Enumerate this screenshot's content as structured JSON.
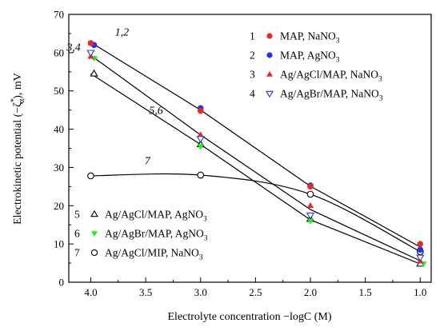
{
  "chart_data": {
    "type": "scatter",
    "title": "",
    "xlabel": "Electrolyte concentration −logC (M)",
    "ylabel": {
      "prefix": "Electrokinetic potential (−ζ",
      "superscript": "*",
      "subscript": "α",
      "suffix": "), mV"
    },
    "xlim": [
      4.2,
      0.9
    ],
    "ylim": [
      0,
      70
    ],
    "x_reversed": true,
    "x_ticks": [
      "4.0",
      "3.5",
      "3.0",
      "2.5",
      "2.0",
      "1.5",
      "1.0"
    ],
    "x_tick_values": [
      4.0,
      3.5,
      3.0,
      2.5,
      2.0,
      1.5,
      1.0
    ],
    "y_ticks": [
      "0",
      "10",
      "20",
      "30",
      "40",
      "50",
      "60",
      "70"
    ],
    "y_tick_values": [
      0,
      10,
      20,
      30,
      40,
      50,
      60,
      70
    ],
    "grid": false,
    "legend_top": {
      "placement": "top-right"
    },
    "legend_bottom": {
      "placement": "bottom-left"
    },
    "series": [
      {
        "number": "1",
        "name": "MAP, NaNO",
        "name_sub": "3",
        "marker": "circle",
        "filled": true,
        "color": "#e8272a",
        "x": [
          4.0,
          3.0,
          2.0,
          1.0
        ],
        "y": [
          62.5,
          44.8,
          25.0,
          10.0
        ]
      },
      {
        "number": "2",
        "name": "MAP, AgNO",
        "name_sub": "3",
        "marker": "circle",
        "filled": true,
        "color": "#2135e0",
        "x": [
          3.97,
          3.0,
          2.0,
          1.0
        ],
        "y": [
          62.0,
          45.5,
          25.3,
          8.5
        ]
      },
      {
        "number": "3",
        "name": "Ag/AgCl/MAP, NaNO",
        "name_sub": "3",
        "marker": "triangle-up",
        "filled": true,
        "color": "#e8272a",
        "x": [
          4.0,
          3.0,
          2.0,
          1.0
        ],
        "y": [
          59.0,
          38.5,
          20.0,
          5.5
        ]
      },
      {
        "number": "4",
        "name": "Ag/AgBr/MAP, NaNO",
        "name_sub": "3",
        "marker": "triangle-down",
        "filled": false,
        "color": "#2135e0",
        "x": [
          4.0,
          3.0,
          2.0,
          1.0
        ],
        "y": [
          60.0,
          37.5,
          17.5,
          6.5
        ]
      },
      {
        "number": "5",
        "name": "Ag/AgCl/MAP, AgNO",
        "name_sub": "3",
        "marker": "triangle-up",
        "filled": false,
        "color": "#000000",
        "x": [
          3.97,
          3.0,
          2.0,
          1.0
        ],
        "y": [
          54.5,
          36.0,
          16.5,
          4.8
        ]
      },
      {
        "number": "6",
        "name": "Ag/AgBr/MAP, AgNO",
        "name_sub": "3",
        "marker": "triangle-down",
        "filled": true,
        "color": "#22ee22",
        "x": [
          3.97,
          3.0,
          2.0,
          0.97
        ],
        "y": [
          58.5,
          35.5,
          16.0,
          4.8
        ]
      },
      {
        "number": "7",
        "name": "Ag/AgCl/MIP, NaNO",
        "name_sub": "3",
        "marker": "circle",
        "filled": false,
        "color": "#000000",
        "x": [
          4.0,
          3.0,
          2.0,
          1.0
        ],
        "y": [
          27.8,
          28.0,
          23.0,
          8.0
        ]
      }
    ],
    "fit_curves": [
      {
        "x": [
          4.0,
          3.0,
          2.0,
          1.0
        ],
        "y": [
          62.7,
          45.0,
          25.1,
          9.2
        ]
      },
      {
        "x": [
          4.0,
          3.0,
          2.0,
          1.0
        ],
        "y": [
          59.3,
          38.5,
          19.0,
          5.6
        ]
      },
      {
        "x": [
          4.0,
          3.0,
          2.0,
          1.0
        ],
        "y": [
          54.5,
          36.0,
          16.3,
          4.8
        ]
      },
      {
        "x": [
          4.0,
          3.0,
          2.0,
          1.0
        ],
        "y": [
          27.8,
          28.0,
          23.0,
          8.0
        ],
        "smooth": true
      }
    ],
    "annotations": [
      {
        "text": "1,2"
      },
      {
        "text": "3,4"
      },
      {
        "text": "5,6"
      },
      {
        "text": "7"
      }
    ]
  }
}
